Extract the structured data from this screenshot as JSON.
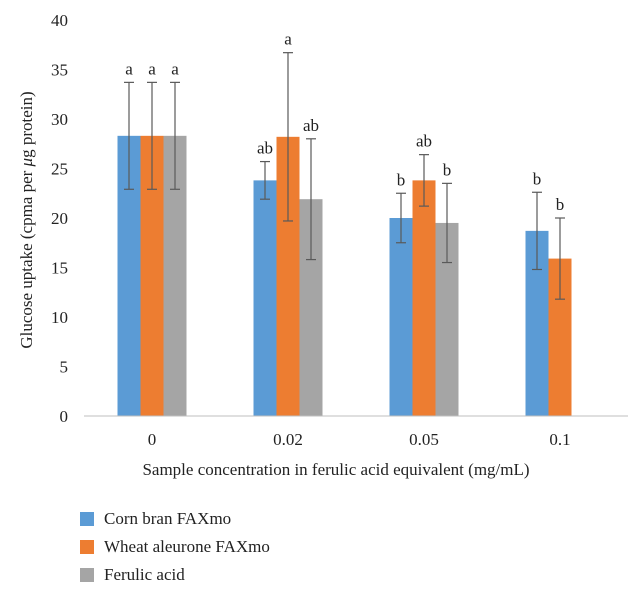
{
  "chart_data": {
    "type": "bar",
    "title": "",
    "xlabel": "Sample concentration in ferulic acid equivalent (mg/mL)",
    "ylabel_parts": [
      "Glucose uptake (cpma per ",
      "μ",
      "g protein)"
    ],
    "categories": [
      "0",
      "0.02",
      "0.05",
      "0.1"
    ],
    "ylim": [
      0,
      40
    ],
    "yticks": [
      0,
      5,
      10,
      15,
      20,
      25,
      30,
      35,
      40
    ],
    "grid": false,
    "legend_position": "bottom-left",
    "series": [
      {
        "name": "Corn bran FAXmo",
        "color": "#5b9bd5",
        "values": [
          28.3,
          23.8,
          20.0,
          18.7
        ],
        "errors": [
          5.4,
          1.9,
          2.5,
          3.9
        ],
        "labels": [
          "a",
          "ab",
          "b",
          "b"
        ]
      },
      {
        "name": "Wheat aleurone FAXmo",
        "color": "#ed7d31",
        "values": [
          28.3,
          28.2,
          23.8,
          15.9
        ],
        "errors": [
          5.4,
          8.5,
          2.6,
          4.1
        ],
        "labels": [
          "a",
          "a",
          "ab",
          "b"
        ]
      },
      {
        "name": "Ferulic acid",
        "color": "#a5a5a5",
        "values": [
          28.3,
          21.9,
          19.5,
          null
        ],
        "errors": [
          5.4,
          6.1,
          4.0,
          null
        ],
        "labels": [
          "a",
          "ab",
          "b",
          ""
        ]
      }
    ]
  }
}
